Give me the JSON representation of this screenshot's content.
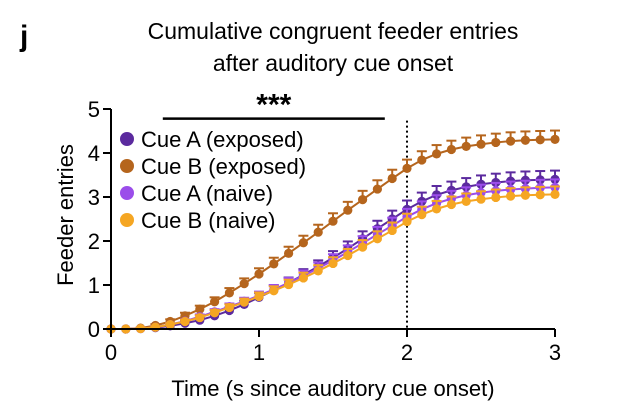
{
  "panel_label": "j",
  "chart_data": {
    "type": "line",
    "title_lines": [
      "Cumulative congruent feeder entries",
      "after auditory cue onset"
    ],
    "xlabel": "Time (s since auditory cue onset)",
    "ylabel": "Feeder entries",
    "xlim": [
      0,
      3
    ],
    "ylim": [
      0,
      5
    ],
    "xticks": [
      0,
      1,
      2,
      3
    ],
    "xtick_labels": [
      "0",
      "1",
      "2",
      "3"
    ],
    "yticks": [
      0,
      1,
      2,
      3,
      4,
      5
    ],
    "ytick_labels": [
      "0",
      "1",
      "2",
      "3",
      "4",
      "5"
    ],
    "grid": false,
    "legend_position": "upper-left",
    "annotations": {
      "significance_text": "***",
      "significance_bar_x": [
        0.35,
        1.85
      ],
      "significance_bar_y": 4.78,
      "vline_x": 2.0
    },
    "x": [
      0,
      0.1,
      0.2,
      0.3,
      0.4,
      0.5,
      0.6,
      0.7,
      0.8,
      0.9,
      1.0,
      1.1,
      1.2,
      1.3,
      1.4,
      1.5,
      1.6,
      1.7,
      1.8,
      1.9,
      2.0,
      2.1,
      2.2,
      2.3,
      2.4,
      2.5,
      2.6,
      2.7,
      2.8,
      2.9,
      3.0
    ],
    "series": [
      {
        "name": "Cue A (exposed)",
        "color": "#5b2a9e",
        "values": [
          0,
          0,
          0.01,
          0.03,
          0.07,
          0.13,
          0.2,
          0.3,
          0.42,
          0.56,
          0.72,
          0.88,
          1.05,
          1.23,
          1.42,
          1.62,
          1.83,
          2.05,
          2.28,
          2.5,
          2.72,
          2.9,
          3.05,
          3.15,
          3.23,
          3.29,
          3.33,
          3.36,
          3.38,
          3.39,
          3.4
        ],
        "errors": [
          0,
          0,
          0.01,
          0.02,
          0.03,
          0.04,
          0.05,
          0.06,
          0.07,
          0.08,
          0.1,
          0.11,
          0.12,
          0.13,
          0.14,
          0.15,
          0.16,
          0.17,
          0.18,
          0.19,
          0.2,
          0.2,
          0.2,
          0.2,
          0.2,
          0.2,
          0.2,
          0.2,
          0.2,
          0.2,
          0.2
        ]
      },
      {
        "name": "Cue B (exposed)",
        "color": "#b5651d",
        "values": [
          0,
          0,
          0.02,
          0.08,
          0.17,
          0.3,
          0.45,
          0.62,
          0.82,
          1.03,
          1.25,
          1.48,
          1.72,
          1.96,
          2.2,
          2.45,
          2.7,
          2.94,
          3.18,
          3.42,
          3.65,
          3.84,
          3.98,
          4.08,
          4.15,
          4.2,
          4.24,
          4.27,
          4.29,
          4.3,
          4.31
        ],
        "errors": [
          0,
          0,
          0.01,
          0.03,
          0.05,
          0.07,
          0.08,
          0.1,
          0.11,
          0.12,
          0.13,
          0.14,
          0.15,
          0.16,
          0.17,
          0.18,
          0.19,
          0.2,
          0.2,
          0.2,
          0.2,
          0.2,
          0.2,
          0.2,
          0.2,
          0.2,
          0.2,
          0.2,
          0.2,
          0.2,
          0.2
        ]
      },
      {
        "name": "Cue A (naive)",
        "color": "#9b4dea",
        "values": [
          0,
          0,
          0.01,
          0.04,
          0.1,
          0.18,
          0.28,
          0.39,
          0.51,
          0.63,
          0.76,
          0.9,
          1.05,
          1.21,
          1.38,
          1.56,
          1.75,
          1.95,
          2.15,
          2.35,
          2.55,
          2.72,
          2.86,
          2.96,
          3.04,
          3.1,
          3.14,
          3.17,
          3.19,
          3.21,
          3.22
        ],
        "errors": [
          0,
          0,
          0.01,
          0.02,
          0.03,
          0.04,
          0.05,
          0.06,
          0.07,
          0.08,
          0.09,
          0.1,
          0.11,
          0.12,
          0.13,
          0.14,
          0.15,
          0.16,
          0.17,
          0.18,
          0.18,
          0.18,
          0.18,
          0.18,
          0.18,
          0.18,
          0.18,
          0.18,
          0.18,
          0.18,
          0.18
        ]
      },
      {
        "name": "Cue B (naive)",
        "color": "#f5a623",
        "values": [
          0,
          0,
          0.01,
          0.04,
          0.1,
          0.17,
          0.26,
          0.37,
          0.49,
          0.61,
          0.74,
          0.87,
          1.01,
          1.16,
          1.32,
          1.49,
          1.67,
          1.86,
          2.05,
          2.24,
          2.44,
          2.6,
          2.73,
          2.83,
          2.9,
          2.95,
          2.99,
          3.02,
          3.04,
          3.05,
          3.06
        ],
        "errors": [
          0,
          0,
          0.01,
          0.02,
          0.03,
          0.04,
          0.05,
          0.06,
          0.07,
          0.08,
          0.09,
          0.1,
          0.11,
          0.12,
          0.13,
          0.14,
          0.15,
          0.16,
          0.17,
          0.18,
          0.18,
          0.18,
          0.18,
          0.18,
          0.18,
          0.18,
          0.18,
          0.18,
          0.18,
          0.18,
          0.18
        ]
      }
    ]
  }
}
